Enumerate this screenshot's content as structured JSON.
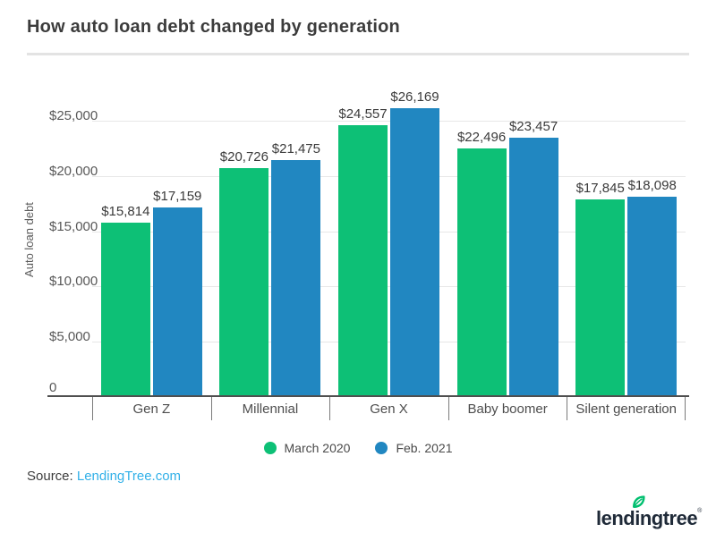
{
  "chart_data": {
    "type": "bar",
    "title": "How auto loan debt changed by generation",
    "xlabel": "",
    "ylabel": "Auto loan debt",
    "categories": [
      "Gen Z",
      "Millennial",
      "Gen X",
      "Baby boomer",
      "Silent generation"
    ],
    "series": [
      {
        "name": "March 2020",
        "color": "#0dc076",
        "values": [
          15814,
          20726,
          24557,
          22496,
          17845
        ],
        "labels": [
          "$15,814",
          "$20,726",
          "$24,557",
          "$22,496",
          "$17,845"
        ]
      },
      {
        "name": "Feb. 2021",
        "color": "#2187c1",
        "values": [
          17159,
          21475,
          26169,
          23457,
          18098
        ],
        "labels": [
          "$17,159",
          "$21,475",
          "$26,169",
          "$23,457",
          "$18,098"
        ]
      }
    ],
    "yticks": [
      {
        "value": 0,
        "label": "0"
      },
      {
        "value": 5000,
        "label": "$5,000"
      },
      {
        "value": 10000,
        "label": "$10,000"
      },
      {
        "value": 15000,
        "label": "$15,000"
      },
      {
        "value": 20000,
        "label": "$20,000"
      },
      {
        "value": 25000,
        "label": "$25,000"
      }
    ],
    "ylim": [
      0,
      28000
    ],
    "grid": "horizontal",
    "legend_position": "bottom"
  },
  "source": {
    "prefix": "Source: ",
    "link_text": "LendingTree.com"
  },
  "logo": {
    "text": "lendingtree",
    "mark": "®",
    "leaf_color": "#00bf6f"
  },
  "colors": {
    "march_2020": "#0dc076",
    "feb_2021": "#2187c1",
    "link": "#31b0e8",
    "axis": "#4f4f4f",
    "grid": "#e7e7e7",
    "title_text": "#3c3c3c"
  }
}
